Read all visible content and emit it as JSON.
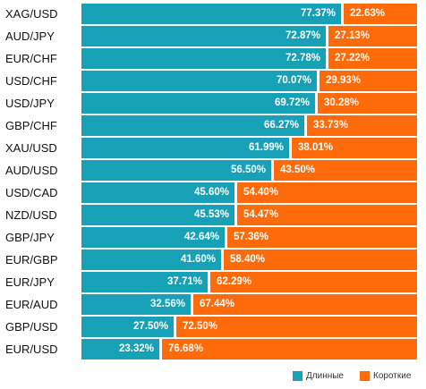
{
  "colors": {
    "long": "#16a1b6",
    "short": "#ff6b0a"
  },
  "chart_data": {
    "type": "bar",
    "orientation": "horizontal",
    "stacked": true,
    "categories": [
      "XAG/USD",
      "AUD/JPY",
      "EUR/CHF",
      "USD/CHF",
      "USD/JPY",
      "GBP/CHF",
      "XAU/USD",
      "AUD/USD",
      "USD/CAD",
      "NZD/USD",
      "GBP/JPY",
      "EUR/GBP",
      "EUR/JPY",
      "EUR/AUD",
      "GBP/USD",
      "EUR/USD"
    ],
    "series": [
      {
        "name": "Длинные",
        "values": [
          77.37,
          72.87,
          72.78,
          70.07,
          69.72,
          66.27,
          61.99,
          56.5,
          45.6,
          45.53,
          42.64,
          41.6,
          37.71,
          32.56,
          27.5,
          23.32
        ],
        "labels": [
          "77.37%",
          "72.87%",
          "72.78%",
          "70.07%",
          "69.72%",
          "66.27%",
          "61.99%",
          "56.50%",
          "45.60%",
          "45.53%",
          "42.64%",
          "41.60%",
          "37.71%",
          "32.56%",
          "27.50%",
          "23.32%"
        ]
      },
      {
        "name": "Короткие",
        "values": [
          22.63,
          27.13,
          27.22,
          29.93,
          30.28,
          33.73,
          38.01,
          43.5,
          54.4,
          54.47,
          57.36,
          58.4,
          62.29,
          67.44,
          72.5,
          76.68
        ],
        "labels": [
          "22.63%",
          "27.13%",
          "27.22%",
          "29.93%",
          "30.28%",
          "33.73%",
          "38.01%",
          "43.50%",
          "54.40%",
          "54.47%",
          "57.36%",
          "58.40%",
          "62.29%",
          "67.44%",
          "72.50%",
          "76.68%"
        ]
      }
    ],
    "xlim": [
      0,
      100
    ],
    "legend_position": "bottom-right",
    "grid": false
  }
}
